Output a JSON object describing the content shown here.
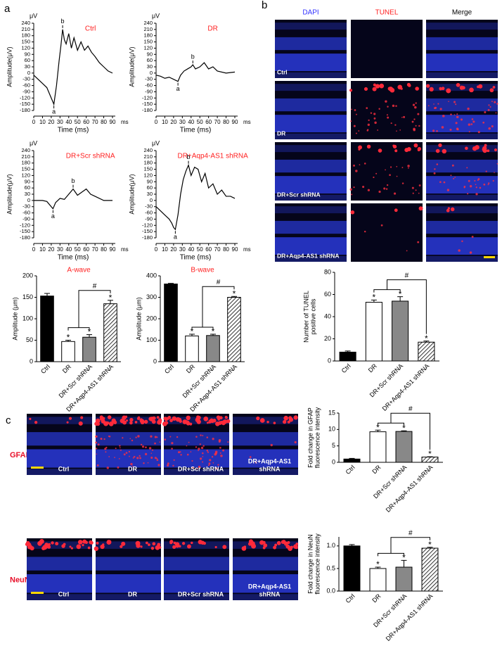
{
  "panel_labels": [
    "a",
    "b",
    "c"
  ],
  "chart_data": [
    {
      "type": "line",
      "title": "Ctrl",
      "title_color": "#ff2020",
      "ylabel": "Amplitude(μV)",
      "y_unit": "μV",
      "xlabel": "Time (ms)",
      "x_unit": "ms",
      "color": "#000000",
      "x": [
        0,
        5,
        10,
        15,
        18,
        21,
        23,
        26,
        29,
        31,
        33,
        35,
        37,
        40,
        43,
        46,
        50,
        54,
        58,
        62,
        66,
        70,
        75,
        80,
        85,
        90
      ],
      "values": [
        -10,
        -30,
        -50,
        -70,
        -100,
        -130,
        -150,
        -60,
        60,
        130,
        210,
        160,
        140,
        190,
        120,
        170,
        110,
        150,
        110,
        130,
        100,
        80,
        50,
        30,
        10,
        0
      ],
      "xlim": [
        0,
        90
      ],
      "xticks": [
        0,
        10,
        20,
        30,
        40,
        50,
        60,
        70,
        80,
        90
      ],
      "ylim": [
        -180,
        240
      ],
      "yticks": [
        -180,
        -150,
        -120,
        -90,
        -60,
        -30,
        0,
        30,
        60,
        90,
        120,
        150,
        180,
        210,
        240
      ],
      "annotations": [
        {
          "text": "a",
          "x": 23,
          "y": -150
        },
        {
          "text": "b",
          "x": 33,
          "y": 210
        }
      ]
    },
    {
      "type": "line",
      "title": "DR",
      "title_color": "#ff2020",
      "ylabel": "Amplitude(μV)",
      "y_unit": "μV",
      "xlabel": "Time (ms)",
      "x_unit": "ms",
      "color": "#000000",
      "x": [
        0,
        5,
        10,
        15,
        20,
        25,
        28,
        32,
        36,
        40,
        42,
        45,
        50,
        55,
        60,
        65,
        70,
        80,
        90
      ],
      "values": [
        -10,
        -15,
        -25,
        -20,
        -30,
        -40,
        -10,
        10,
        20,
        30,
        40,
        20,
        30,
        50,
        20,
        30,
        10,
        0,
        5
      ],
      "xlim": [
        0,
        90
      ],
      "xticks": [
        0,
        10,
        20,
        30,
        40,
        50,
        60,
        70,
        80,
        90
      ],
      "ylim": [
        -180,
        240
      ],
      "yticks": [
        -180,
        -150,
        -120,
        -90,
        -60,
        -30,
        0,
        30,
        60,
        90,
        120,
        150,
        180,
        210,
        240
      ],
      "annotations": [
        {
          "text": "a",
          "x": 25,
          "y": -40
        },
        {
          "text": "b",
          "x": 42,
          "y": 40
        }
      ]
    },
    {
      "type": "line",
      "title": "DR+Scr shRNA",
      "title_color": "#ff2020",
      "ylabel": "Amplitude(μV)",
      "y_unit": "μV",
      "xlabel": "Time (ms)",
      "x_unit": "ms",
      "color": "#000000",
      "x": [
        0,
        5,
        10,
        15,
        20,
        22,
        25,
        30,
        35,
        40,
        45,
        50,
        55,
        60,
        65,
        70,
        80,
        90
      ],
      "values": [
        0,
        0,
        0,
        -5,
        -30,
        -40,
        -10,
        10,
        5,
        30,
        55,
        25,
        40,
        55,
        30,
        20,
        0,
        0
      ],
      "xlim": [
        0,
        90
      ],
      "xticks": [
        0,
        10,
        20,
        30,
        40,
        50,
        60,
        70,
        80,
        90
      ],
      "ylim": [
        -180,
        240
      ],
      "yticks": [
        -180,
        -150,
        -120,
        -90,
        -60,
        -30,
        0,
        30,
        60,
        90,
        120,
        150,
        180,
        210,
        240
      ],
      "annotations": [
        {
          "text": "a",
          "x": 22,
          "y": -40
        },
        {
          "text": "b",
          "x": 45,
          "y": 55
        }
      ]
    },
    {
      "type": "line",
      "title": "DR+Aqp4-AS1  shRNA",
      "title_color": "#ff2020",
      "ylabel": "Amplitude(μV)",
      "y_unit": "μV",
      "xlabel": "Time (ms)",
      "x_unit": "ms",
      "color": "#000000",
      "x": [
        0,
        5,
        10,
        15,
        18,
        20,
        22,
        25,
        28,
        31,
        34,
        37,
        40,
        44,
        48,
        52,
        56,
        60,
        65,
        70,
        75,
        80,
        85,
        90
      ],
      "values": [
        -30,
        -50,
        -70,
        -90,
        -110,
        -130,
        -140,
        -70,
        30,
        100,
        140,
        170,
        120,
        160,
        150,
        90,
        130,
        60,
        80,
        30,
        50,
        20,
        20,
        10
      ],
      "xlim": [
        0,
        90
      ],
      "xticks": [
        0,
        10,
        20,
        30,
        40,
        50,
        60,
        70,
        80,
        90
      ],
      "ylim": [
        -180,
        240
      ],
      "yticks": [
        -180,
        -150,
        -120,
        -90,
        -60,
        -30,
        0,
        30,
        60,
        90,
        120,
        150,
        180,
        210,
        240
      ],
      "annotations": [
        {
          "text": "a",
          "x": 22,
          "y": -140
        },
        {
          "text": "b",
          "x": 37,
          "y": 170
        }
      ]
    },
    {
      "type": "bar",
      "title": "A-wave",
      "title_color": "#ff2020",
      "ylabel": [
        "Amplitude (μm)"
      ],
      "categories": [
        "Ctrl",
        "DR",
        "DR+Scr shRNA",
        "DR+Aqp4-AS1 shRNA"
      ],
      "values": [
        153,
        47,
        57,
        135
      ],
      "errors": [
        6,
        3,
        6,
        8
      ],
      "colors": [
        "#000000",
        "#ffffff",
        "#888888",
        "#ffffff"
      ],
      "hatch": [
        false,
        false,
        false,
        true
      ],
      "markers": [
        null,
        "*",
        "*",
        "*"
      ],
      "bracket_label": "#",
      "ylim": [
        0,
        200
      ],
      "yticks": [
        0,
        50,
        100,
        150,
        200
      ]
    },
    {
      "type": "bar",
      "title": "B-wave",
      "title_color": "#ff2020",
      "ylabel": [
        "Amplitude (μm)"
      ],
      "categories": [
        "Ctrl",
        "DR",
        "DR+Scr shRNA",
        "DR+Aqp4-AS1 shRNA"
      ],
      "values": [
        362,
        120,
        122,
        300
      ],
      "errors": [
        3,
        8,
        6,
        4
      ],
      "colors": [
        "#000000",
        "#ffffff",
        "#888888",
        "#ffffff"
      ],
      "hatch": [
        false,
        false,
        false,
        true
      ],
      "markers": [
        null,
        "*",
        "*",
        "*"
      ],
      "bracket_label": "#",
      "ylim": [
        0,
        400
      ],
      "yticks": [
        0,
        100,
        200,
        300,
        400
      ]
    },
    {
      "type": "bar",
      "ylabel": [
        "Number of TUNEL",
        "positive cells"
      ],
      "categories": [
        "Ctrl",
        "DR",
        "DR+Scr shRNA",
        "DR+Aqp4-AS1 shRNA"
      ],
      "values": [
        8,
        53,
        54,
        17
      ],
      "errors": [
        1,
        2,
        4,
        1
      ],
      "colors": [
        "#000000",
        "#ffffff",
        "#888888",
        "#ffffff"
      ],
      "hatch": [
        false,
        false,
        false,
        true
      ],
      "markers": [
        null,
        "*",
        "*",
        "*"
      ],
      "bracket_label": "#",
      "ylim": [
        0,
        80
      ],
      "yticks": [
        0,
        20,
        40,
        60,
        80
      ]
    },
    {
      "type": "bar",
      "ylabel": [
        "Fold change in GFAP",
        "fluorescence intensity"
      ],
      "categories": [
        "Ctrl",
        "DR",
        "DR+Scr shRNA",
        "DR+Aqp4-AS1 shRNA"
      ],
      "values": [
        1,
        9.3,
        9.4,
        1.6
      ],
      "errors": [
        0.2,
        0.5,
        0.2,
        0.1
      ],
      "colors": [
        "#000000",
        "#ffffff",
        "#888888",
        "#ffffff"
      ],
      "hatch": [
        false,
        false,
        false,
        true
      ],
      "markers": [
        null,
        "*",
        "*",
        "*"
      ],
      "bracket_label": "#",
      "ylim": [
        0,
        15
      ],
      "yticks": [
        0,
        5,
        10,
        15
      ]
    },
    {
      "type": "bar",
      "ylabel": [
        "Fold change in NeuN",
        "fluorescence intensity"
      ],
      "categories": [
        "Ctrl",
        "DR",
        "DR+Scr shRNA",
        "DR+Aqp4-AS1 shRNA"
      ],
      "values": [
        1.0,
        0.5,
        0.53,
        0.95
      ],
      "errors": [
        0.03,
        0.03,
        0.15,
        0.02
      ],
      "colors": [
        "#000000",
        "#ffffff",
        "#888888",
        "#ffffff"
      ],
      "hatch": [
        false,
        false,
        false,
        true
      ],
      "markers": [
        null,
        "*",
        "*",
        "*"
      ],
      "bracket_label": "#",
      "ylim": [
        0,
        1.2
      ],
      "yticks": [
        {
          "value": 0,
          "label": "0.0"
        },
        {
          "value": 0.5,
          "label": "0.5"
        },
        {
          "value": 1,
          "label": "1.0"
        }
      ]
    }
  ],
  "tunel_images": {
    "columns": [
      "DAPI",
      "TUNEL",
      "Merge"
    ],
    "rows": [
      "Ctrl",
      "DR",
      "DR+Scr shRNA",
      "DR+Aqp4-AS1 shRNA"
    ]
  },
  "fluorescence_images": {
    "markers": [
      "GFAP",
      "NeuN"
    ],
    "groups": [
      [
        "Ctrl"
      ],
      [
        "DR"
      ],
      [
        "DR+Scr shRNA"
      ],
      [
        "DR+Aqp4-AS1",
        "shRNA"
      ]
    ]
  }
}
